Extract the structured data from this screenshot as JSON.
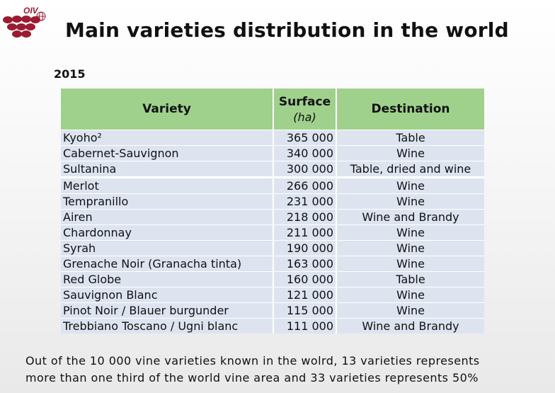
{
  "logo": {
    "text": "OIV"
  },
  "title": "Main varieties distribution in the world",
  "year": "2015",
  "table": {
    "headers": {
      "variety": "Variety",
      "surface": "Surface",
      "surface_unit": "(ha)",
      "destination": "Destination"
    },
    "rows": [
      {
        "variety": "Kyoho²",
        "surface": "365 000",
        "destination": "Table"
      },
      {
        "variety": "Cabernet-Sauvignon",
        "surface": "340 000",
        "destination": "Wine"
      },
      {
        "variety": "Sultanina",
        "surface": "300 000",
        "destination": "Table, dried and wine"
      },
      {
        "variety": "Merlot",
        "surface": "266 000",
        "destination": "Wine"
      },
      {
        "variety": "Tempranillo",
        "surface": "231 000",
        "destination": "Wine"
      },
      {
        "variety": "Airen",
        "surface": "218 000",
        "destination": "Wine and Brandy"
      },
      {
        "variety": "Chardonnay",
        "surface": "211 000",
        "destination": "Wine"
      },
      {
        "variety": "Syrah",
        "surface": "190 000",
        "destination": "Wine"
      },
      {
        "variety": "Grenache Noir (Granacha tinta)",
        "surface": "163 000",
        "destination": "Wine"
      },
      {
        "variety": "Red Globe",
        "surface": "160 000",
        "destination": "Table"
      },
      {
        "variety": "Sauvignon Blanc",
        "surface": "121 000",
        "destination": "Wine"
      },
      {
        "variety": "Pinot Noir / Blauer burgunder",
        "surface": "115 000",
        "destination": "Wine"
      },
      {
        "variety": "Trebbiano Toscano / Ugni blanc",
        "surface": "111 000",
        "destination": "Wine and Brandy"
      }
    ]
  },
  "note": {
    "line1": "Out of  the 10 000 vine varieties known in the wolrd, 13 varieties represents",
    "line2": "more than one third of the world vine area and 33 varieties represents 50%"
  },
  "colors": {
    "header_bg": "#9fd18c",
    "row_bg": "#dde4f0",
    "logo": "#9b1b30"
  }
}
